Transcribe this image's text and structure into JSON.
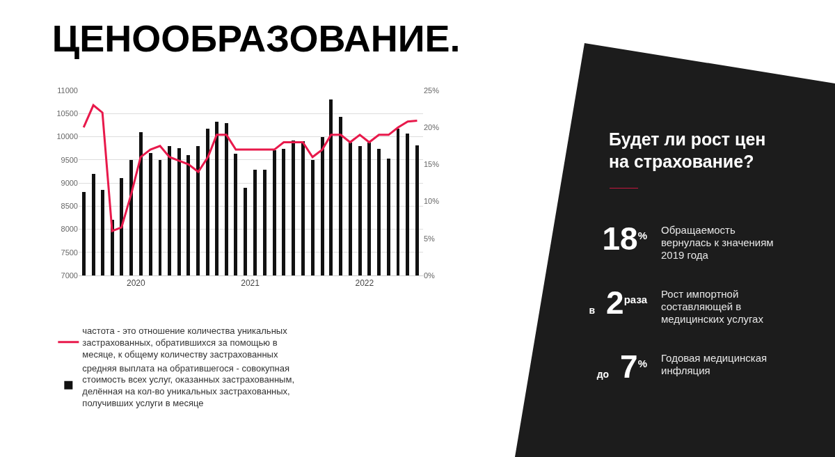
{
  "chart_data": [
    {
      "type": "bar",
      "title": "ЦЕНООБРАЗОВАНИЕ.",
      "x": [
        "2020-01",
        "2020-02",
        "2020-03",
        "2020-04",
        "2020-05",
        "2020-06",
        "2020-07",
        "2020-08",
        "2020-09",
        "2020-10",
        "2020-11",
        "2020-12",
        "2021-01",
        "2021-02",
        "2021-03",
        "2021-04",
        "2021-05",
        "2021-06",
        "2021-07",
        "2021-08",
        "2021-09",
        "2021-10",
        "2021-11",
        "2021-12",
        "2022-01",
        "2022-02",
        "2022-03",
        "2022-04",
        "2022-05",
        "2022-06",
        "2022-07",
        "2022-08",
        "2022-09",
        "2022-10",
        "2022-11",
        "2022-12"
      ],
      "series": [
        {
          "name": "частота - это отношение количества уникальных застрахованных, обратившихся за помощью в месяце, к общему количеству застрахованных",
          "type": "line",
          "axis": "y2",
          "color": "#e8194b",
          "values": [
            20,
            23,
            22,
            6,
            6.5,
            11,
            16,
            17,
            17.5,
            16,
            15.5,
            15,
            14,
            16,
            19,
            19,
            17,
            17,
            17,
            17,
            17,
            18,
            18,
            18,
            16,
            17,
            19,
            19,
            18,
            19,
            18,
            19,
            19,
            20,
            20.8,
            20.9
          ]
        },
        {
          "name": "средняя выплата на обратившегося - совокупная стоимость всех услуг, оказанных застрахованным, делённая на кол-во уникальных застрахованных, получивших услуги в месяце",
          "type": "bar",
          "color": "#111111",
          "values": [
            8800,
            9200,
            8850,
            8200,
            9100,
            9500,
            10100,
            9650,
            9500,
            9800,
            9750,
            9600,
            9800,
            10170,
            10330,
            10300,
            9630,
            8900,
            9280,
            9280,
            9700,
            9730,
            9920,
            9900,
            9500,
            10000,
            10810,
            10430,
            9870,
            9800,
            9870,
            9730,
            9520,
            10170,
            10070,
            9810
          ]
        }
      ],
      "xlim": [
        "2019-12-16",
        "2022-12-20"
      ],
      "xticks": [
        {
          "value": "2020-06-16",
          "label": "2020"
        },
        {
          "value": "2021-06-16",
          "label": "2021"
        },
        {
          "value": "2022-06-16",
          "label": "2022"
        }
      ],
      "ylim": [
        7000,
        11000
      ],
      "yticks": [
        7000,
        7500,
        8000,
        8500,
        9000,
        9500,
        10000,
        10500,
        11000
      ],
      "y2lim": [
        0,
        25
      ],
      "y2ticks": [
        {
          "value": 0,
          "label": "0%"
        },
        {
          "value": 5,
          "label": "5%"
        },
        {
          "value": 10,
          "label": "10%"
        },
        {
          "value": 15,
          "label": "15%"
        },
        {
          "value": 20,
          "label": "20%"
        },
        {
          "value": 25,
          "label": "25%"
        }
      ],
      "grid": "y",
      "legend": "bottom left"
    },
    {
      "type": "other",
      "title": "Будет ли рост цен на страхование?",
      "annotations": [
        "18$^{%}$",
        "Обращаемость вернулась к значениям 2019 года",
        "в 2$^{раза}$",
        "Рост импортной составляющей в медицинских услугах",
        "до 7$^{%}$",
        "Годовая медицинская инфляция"
      ]
    }
  ]
}
